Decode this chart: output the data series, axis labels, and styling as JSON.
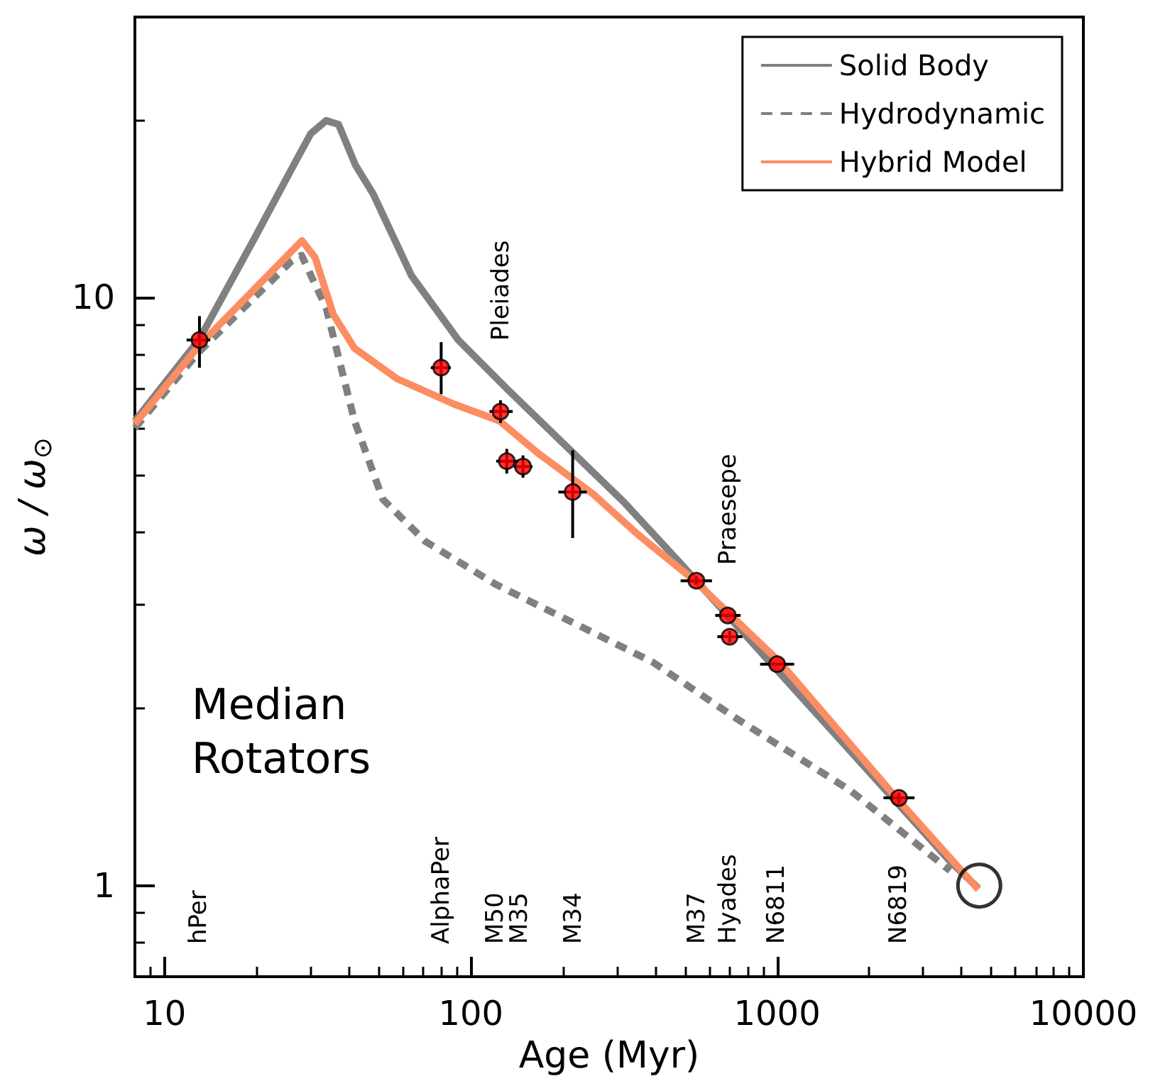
{
  "chart_data": {
    "type": "line",
    "xlabel": "Age (Myr)",
    "ylabel": "ω / ω$_{⊙}$",
    "log": "xy",
    "grid": false,
    "legend": "top right",
    "xlim": [
      8,
      10000
    ],
    "xticks": [
      10,
      100,
      1000,
      10000
    ],
    "ylim": [
      0.7,
      30
    ],
    "yticks": [
      1,
      10
    ],
    "series": [
      {
        "name": "Solid Body",
        "color": "#808080",
        "line_style": "solid",
        "marker": "none",
        "x": [
          8,
          13,
          19.8,
          27.2,
          30,
          33.7,
          37,
          42,
          48,
          64,
          91,
          131,
          316,
          484,
          3670,
          4540
        ],
        "values": [
          6.17,
          8.5,
          12.7,
          17.3,
          19,
          20,
          19.7,
          16.8,
          15,
          10.9,
          8.47,
          7.0,
          4.49,
          3.53,
          1.1,
          0.99
        ]
      },
      {
        "name": "Hydrodynamic",
        "color": "#808080",
        "line_style": "dashed",
        "marker": "none",
        "x": [
          8,
          13,
          25.8,
          28,
          33.7,
          41.7,
          51.6,
          71,
          121,
          207,
          392,
          741,
          1740,
          2960,
          3670
        ],
        "values": [
          6.0,
          8.1,
          11.5,
          11.8,
          9.6,
          6.17,
          4.54,
          3.85,
          3.25,
          2.83,
          2.4,
          1.92,
          1.45,
          1.16,
          1.06
        ]
      },
      {
        "name": "Hybrid Model",
        "color": "#fc8d62",
        "line_style": "solid",
        "marker": "none",
        "x": [
          8,
          13,
          28.1,
          31,
          35.6,
          41.7,
          57.4,
          88,
          124,
          167,
          250,
          352,
          538,
          1020,
          2450,
          4540
        ],
        "values": [
          6.1,
          8.3,
          12.5,
          11.7,
          9.35,
          8.2,
          7.28,
          6.59,
          6.17,
          5.42,
          4.64,
          3.95,
          3.3,
          2.4,
          1.41,
          0.985
        ]
      },
      {
        "type": "scatter",
        "color": "#ff0000",
        "marker": "circle",
        "x": [
          13,
          80,
          125,
          131,
          148,
          215,
          545,
          690,
          700,
          1000,
          2500
        ],
        "values": [
          8.47,
          7.6,
          6.4,
          5.27,
          5.16,
          4.67,
          3.3,
          2.88,
          2.65,
          2.38,
          1.41
        ],
        "xerrors": [
          [
            11.8,
            14.1
          ],
          [
            74,
            86
          ],
          [
            115,
            137
          ],
          [
            121,
            143
          ],
          [
            138,
            159
          ],
          [
            193,
            239
          ],
          [
            484,
            613
          ],
          [
            628,
            760
          ],
          [
            638,
            770
          ],
          [
            880,
            1137
          ],
          [
            2225,
            2810
          ]
        ],
        "errors": [
          [
            7.6,
            9.3
          ],
          [
            6.85,
            8.4
          ],
          [
            6.12,
            6.69
          ],
          [
            5.02,
            5.53
          ],
          [
            4.94,
            5.39
          ],
          [
            3.9,
            5.5
          ],
          [
            3.25,
            3.36
          ],
          [
            2.86,
            2.9
          ],
          [
            2.59,
            2.71
          ],
          [
            2.37,
            2.39
          ],
          [
            1.38,
            1.44
          ]
        ]
      },
      {
        "type": "scatter",
        "color": "#000000",
        "marker": "circle",
        "x": [
          4570
        ],
        "values": [
          1
        ]
      }
    ],
    "annotations": [
      "Median\nRotators",
      "hPer",
      "AlphaPer",
      "M50",
      "M35",
      "M34",
      "M37",
      "Hyades",
      "N6811",
      "N6819",
      "Pleiades",
      "Praesepe"
    ]
  }
}
